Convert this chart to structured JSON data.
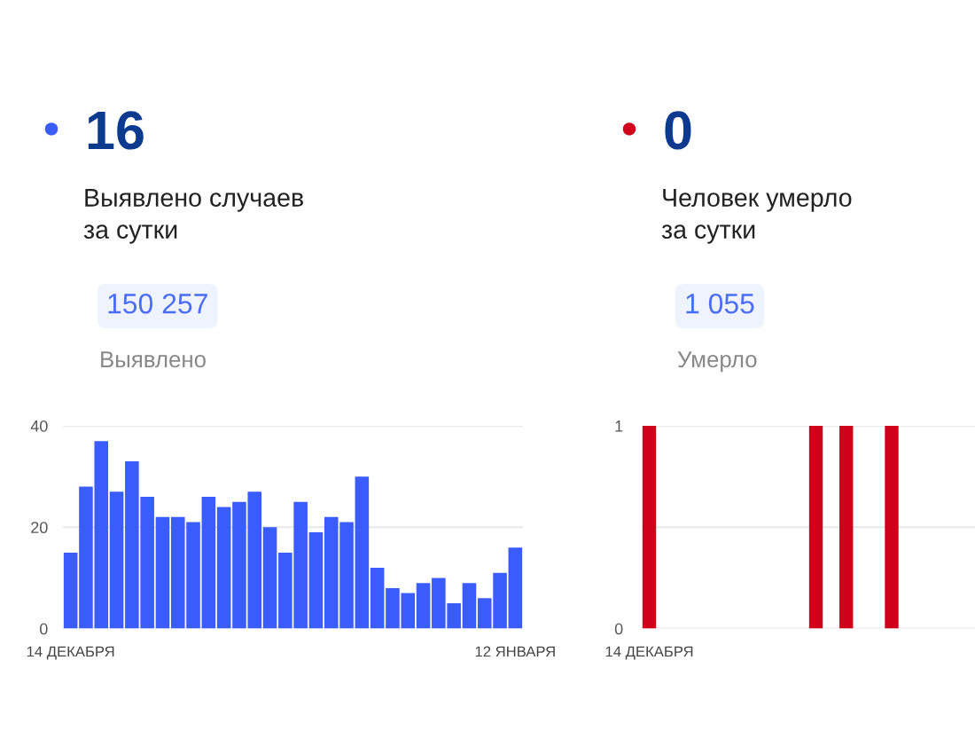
{
  "chart_data": [
    {
      "type": "bar",
      "title": "16",
      "subtitle": "Выявлено случаев\nза сутки",
      "annotations": [
        "150 257",
        "Выявлено"
      ],
      "categories": [
        "14 ДЕКАБРЯ",
        null,
        null,
        null,
        null,
        null,
        null,
        null,
        null,
        null,
        null,
        null,
        null,
        null,
        null,
        null,
        null,
        null,
        null,
        null,
        null,
        null,
        null,
        null,
        null,
        null,
        null,
        null,
        null,
        "12 ЯНВАРЯ"
      ],
      "values": [
        15,
        28,
        37,
        27,
        33,
        26,
        22,
        22,
        21,
        26,
        24,
        25,
        27,
        20,
        15,
        25,
        19,
        22,
        21,
        30,
        12,
        8,
        7,
        9,
        10,
        5,
        9,
        6,
        11,
        16
      ],
      "color": "#3a5cfa",
      "ylim": [
        0,
        40
      ],
      "yticks": [
        0,
        20,
        40
      ],
      "grid": "y"
    },
    {
      "type": "bar",
      "title": "0",
      "subtitle": "Человек умерло\nза сутки",
      "annotations": [
        "1 055",
        "Умерло"
      ],
      "categories": [
        "14 ДЕКАБРЯ",
        null,
        null,
        null,
        null,
        null,
        null,
        null,
        null,
        null,
        null,
        null,
        null,
        null,
        null,
        null,
        null,
        null,
        null,
        null,
        null,
        null
      ],
      "values": [
        1,
        0,
        0,
        0,
        0,
        0,
        0,
        0,
        0,
        0,
        0,
        1,
        0,
        1,
        0,
        0,
        1,
        0,
        0,
        0,
        0,
        0
      ],
      "color": "#d0021b",
      "ylim": [
        0,
        1
      ],
      "yticks": [
        0,
        {
          "value": 0.5,
          "label": null
        },
        1
      ],
      "grid": "y"
    }
  ]
}
